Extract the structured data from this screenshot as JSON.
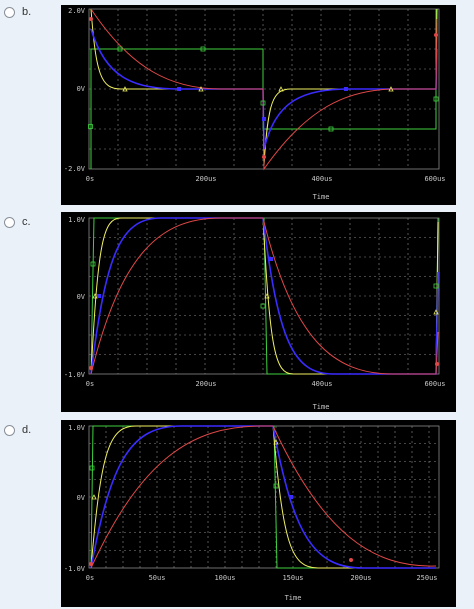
{
  "options": [
    {
      "label": "b.",
      "y_labels": [
        "2.0V",
        "0V",
        "-2.0V"
      ],
      "x_labels": [
        "0s",
        "200us",
        "400us",
        "600us"
      ],
      "x_title": "Time"
    },
    {
      "label": "c.",
      "y_labels": [
        "1.0V",
        "0V",
        "-1.0V"
      ],
      "x_labels": [
        "0s",
        "200us",
        "400us",
        "600us"
      ],
      "x_title": "Time"
    },
    {
      "label": "d.",
      "y_labels": [
        "1.0V",
        "0V",
        "-1.0V"
      ],
      "x_labels": [
        "0s",
        "50us",
        "100us",
        "150us",
        "200us",
        "250us"
      ],
      "x_title": "Time"
    }
  ],
  "colors": {
    "scope_bg": "#000000",
    "grid": "#8a8a8a",
    "green": "#3fd13f",
    "yellow": "#f0f060",
    "blue": "#3a2cff",
    "red": "#e04848"
  }
}
